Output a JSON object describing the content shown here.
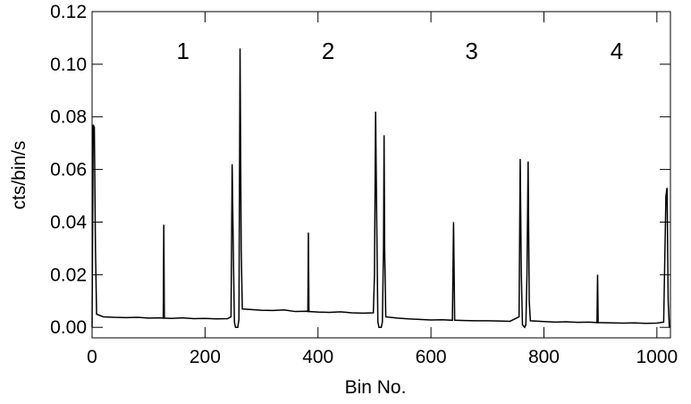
{
  "chart_data": {
    "type": "line",
    "xlabel": "Bin No.",
    "ylabel": "cts/bin/s",
    "xlim": [
      0,
      1024
    ],
    "ylim": [
      -0.004,
      0.12
    ],
    "xticks": [
      0,
      200,
      400,
      600,
      800,
      1000
    ],
    "yticks": [
      {
        "value": 0,
        "label": "0.00"
      },
      {
        "value": 0.02,
        "label": "0.02"
      },
      {
        "value": 0.04,
        "label": "0.04"
      },
      {
        "value": 0.06,
        "label": "0.06"
      },
      {
        "value": 0.08,
        "label": "0.08"
      },
      {
        "value": 0.1,
        "label": "0.10"
      },
      {
        "value": 0.12,
        "label": "0.12"
      }
    ],
    "x": [
      0,
      2,
      4,
      6,
      8,
      20,
      40,
      60,
      80,
      100,
      120,
      126,
      127,
      128,
      140,
      160,
      180,
      200,
      220,
      240,
      246,
      248,
      250,
      252,
      254,
      258,
      260,
      262,
      264,
      266,
      280,
      300,
      320,
      340,
      360,
      380,
      382,
      383,
      384,
      400,
      420,
      440,
      460,
      480,
      498,
      500,
      502,
      504,
      506,
      508,
      512,
      514,
      516,
      517,
      518,
      520,
      540,
      560,
      580,
      600,
      620,
      638,
      640,
      642,
      660,
      680,
      700,
      720,
      740,
      756,
      758,
      760,
      762,
      766,
      768,
      770,
      772,
      774,
      776,
      800,
      820,
      840,
      860,
      880,
      894,
      895,
      896,
      920,
      940,
      960,
      980,
      1000,
      1012,
      1016,
      1018,
      1020,
      1022
    ],
    "series": [
      {
        "color": "#000000",
        "values": [
          0,
          0.077,
          0.076,
          0.03,
          0.005,
          0.004,
          0.0038,
          0.0037,
          0.0038,
          0.0035,
          0.0036,
          0.0035,
          0.039,
          0.0035,
          0.0034,
          0.0036,
          0.0033,
          0.0034,
          0.0032,
          0.0033,
          0.004,
          0.062,
          0.03,
          0.002,
          0,
          0,
          0.003,
          0.106,
          0.03,
          0.007,
          0.0068,
          0.0065,
          0.0064,
          0.0066,
          0.006,
          0.0061,
          0.006,
          0.036,
          0.006,
          0.0058,
          0.0057,
          0.0059,
          0.0055,
          0.0054,
          0.0055,
          0.02,
          0.082,
          0.04,
          0.002,
          0,
          0,
          0.002,
          0.03,
          0.073,
          0.03,
          0.004,
          0.0035,
          0.0032,
          0.003,
          0.0028,
          0.0029,
          0.0027,
          0.04,
          0.0027,
          0.0026,
          0.0025,
          0.0025,
          0.0024,
          0.0023,
          0.004,
          0.064,
          0.02,
          0.001,
          0,
          0.001,
          0.02,
          0.063,
          0.01,
          0.0025,
          0.0022,
          0.002,
          0.0021,
          0.0019,
          0.002,
          0.0018,
          0.02,
          0.0018,
          0.0017,
          0.0016,
          0.0017,
          0.0015,
          0.0016,
          0.002,
          0.05,
          0.053,
          0.01,
          0
        ]
      }
    ],
    "annotations": [
      {
        "text": "1",
        "x": 161,
        "y": 0.102,
        "color": "#c00000"
      },
      {
        "text": "2",
        "x": 418,
        "y": 0.102,
        "color": "#0000c0"
      },
      {
        "text": "3",
        "x": 672,
        "y": 0.102,
        "color": "#c00000"
      },
      {
        "text": "4",
        "x": 929,
        "y": 0.102,
        "color": "#0000c0"
      }
    ]
  }
}
